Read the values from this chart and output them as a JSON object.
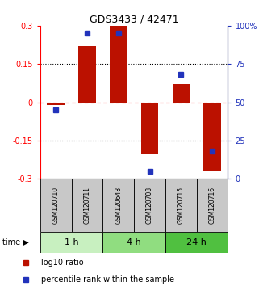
{
  "title": "GDS3433 / 42471",
  "samples": [
    "GSM120710",
    "GSM120711",
    "GSM120648",
    "GSM120708",
    "GSM120715",
    "GSM120716"
  ],
  "log10_ratio": [
    -0.01,
    0.22,
    0.3,
    -0.2,
    0.07,
    -0.27
  ],
  "percentile_rank": [
    45,
    95,
    95,
    5,
    68,
    18
  ],
  "time_groups": [
    {
      "label": "1 h",
      "indices": [
        0,
        1
      ],
      "color": "#c8f0c0"
    },
    {
      "label": "4 h",
      "indices": [
        2,
        3
      ],
      "color": "#90dd80"
    },
    {
      "label": "24 h",
      "indices": [
        4,
        5
      ],
      "color": "#50c040"
    }
  ],
  "bar_color": "#bb1100",
  "dot_color": "#2233bb",
  "ylim_left": [
    -0.3,
    0.3
  ],
  "ylim_right": [
    0,
    100
  ],
  "yticks_left": [
    -0.3,
    -0.15,
    0,
    0.15,
    0.3
  ],
  "yticks_right": [
    0,
    25,
    50,
    75,
    100
  ],
  "ytick_labels_left": [
    "-0.3",
    "-0.15",
    "0",
    "0.15",
    "0.3"
  ],
  "ytick_labels_right": [
    "0",
    "25",
    "50",
    "75",
    "100%"
  ],
  "hlines_dotted": [
    -0.15,
    0.15
  ],
  "hline_dashed": 0,
  "legend_items": [
    {
      "label": "log10 ratio",
      "color": "#bb1100"
    },
    {
      "label": "percentile rank within the sample",
      "color": "#2233bb"
    }
  ],
  "sample_box_color": "#c8c8c8",
  "fig_width": 3.21,
  "fig_height": 3.54,
  "dpi": 100
}
